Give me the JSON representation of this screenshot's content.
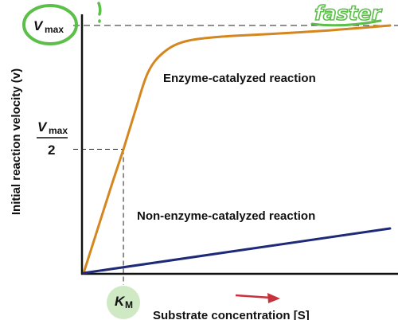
{
  "chart_data": {
    "type": "line",
    "xlabel": "Substrate concentration [S]",
    "ylabel": "Initial reaction velocity (v)",
    "x_range": [
      0,
      10
    ],
    "y_range": [
      0,
      10
    ],
    "ticks": {
      "vmax": {
        "symbol": "V",
        "subscript": "max",
        "value": 10
      },
      "half_vmax": {
        "symbol": "V",
        "subscript": "max",
        "denominator": "2",
        "value": 5
      },
      "km": {
        "symbol": "K",
        "subscript": "M",
        "value": 1.3
      }
    },
    "series": [
      {
        "name": "Enzyme-catalyzed reaction",
        "color": "#d4861f",
        "points": [
          [
            0,
            0
          ],
          [
            0.4,
            1.55
          ],
          [
            0.9,
            3.5
          ],
          [
            1.3,
            5.0
          ],
          [
            1.7,
            6.6
          ],
          [
            2.1,
            8.1
          ],
          [
            2.6,
            8.9
          ],
          [
            3.3,
            9.35
          ],
          [
            4.5,
            9.55
          ],
          [
            6,
            9.65
          ],
          [
            8,
            9.8
          ],
          [
            10,
            10
          ]
        ]
      },
      {
        "name": "Non-enzyme-catalyzed reaction",
        "color": "#1e2a78",
        "points": [
          [
            0,
            0
          ],
          [
            10,
            1.8
          ]
        ]
      }
    ],
    "annotations": {
      "handwritten": "faster",
      "handwriting_color": "#5cbf4a",
      "km_highlight_color": "#cfe9c4",
      "arrow_color": "#c8323c"
    },
    "grid": false
  }
}
